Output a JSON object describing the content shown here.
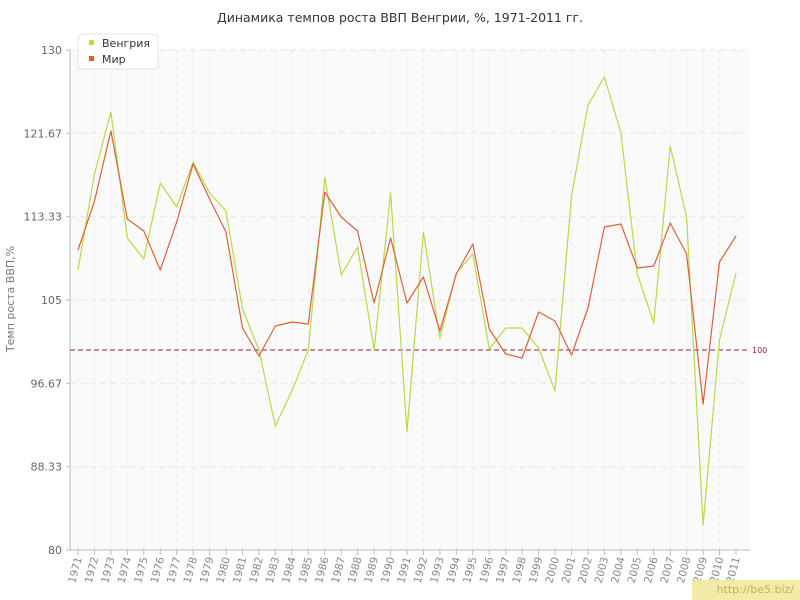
{
  "chart_data": {
    "type": "line",
    "title": "Динамика темпов роста ВВП Венгрии, %, 1971-2011 гг.",
    "xlabel": "",
    "ylabel": "Темп роста ВВП,%",
    "ylim": [
      80,
      130
    ],
    "yticks": [
      "130",
      "121.67",
      "113.33",
      "105",
      "96.67",
      "88.33",
      "80"
    ],
    "ytick_values": [
      130,
      121.67,
      113.33,
      105,
      96.67,
      88.33,
      80
    ],
    "categories": [
      "1971",
      "1972",
      "1973",
      "1974",
      "1975",
      "1976",
      "1977",
      "1978",
      "1979",
      "1980",
      "1981",
      "1982",
      "1983",
      "1984",
      "1985",
      "1986",
      "1987",
      "1988",
      "1989",
      "1990",
      "1991",
      "1992",
      "1993",
      "1994",
      "1995",
      "1996",
      "1997",
      "1998",
      "1999",
      "2000",
      "2001",
      "2002",
      "2003",
      "2004",
      "2005",
      "2006",
      "2007",
      "2008",
      "2009",
      "2010",
      "2011"
    ],
    "series": [
      {
        "name": "Венгрия",
        "color": "#b8d84a",
        "values": [
          108,
          117.6,
          123.8,
          111.2,
          109.1,
          116.7,
          114.3,
          118.8,
          115.7,
          113.9,
          104.1,
          100.0,
          92.4,
          95.9,
          100.0,
          117.3,
          107.5,
          110.3,
          100.0,
          115.7,
          91.8,
          111.8,
          101.2,
          107.7,
          109.6,
          100.1,
          102.2,
          102.2,
          100.2,
          95.9,
          115.4,
          124.5,
          127.3,
          121.7,
          107.6,
          102.7,
          120.4,
          113.3,
          82.5,
          101.0,
          107.7
        ]
      },
      {
        "name": "Мир",
        "color": "#d9623a",
        "values": [
          110.0,
          114.9,
          121.9,
          113.1,
          111.9,
          108.0,
          112.8,
          118.6,
          115.1,
          111.8,
          102.2,
          99.4,
          102.4,
          102.8,
          102.6,
          115.8,
          113.3,
          111.9,
          104.7,
          111.2,
          104.7,
          107.3,
          101.9,
          107.6,
          110.6,
          102.1,
          99.6,
          99.2,
          103.8,
          102.9,
          99.5,
          104.2,
          112.3,
          112.6,
          108.2,
          108.4,
          112.7,
          109.6,
          94.6,
          108.8,
          111.4
        ]
      }
    ],
    "reference_line": {
      "value": 100,
      "label": "100",
      "color": "#8b2a3a"
    },
    "grid": true,
    "legend": "top-left"
  },
  "watermark": "http://be5.biz/"
}
